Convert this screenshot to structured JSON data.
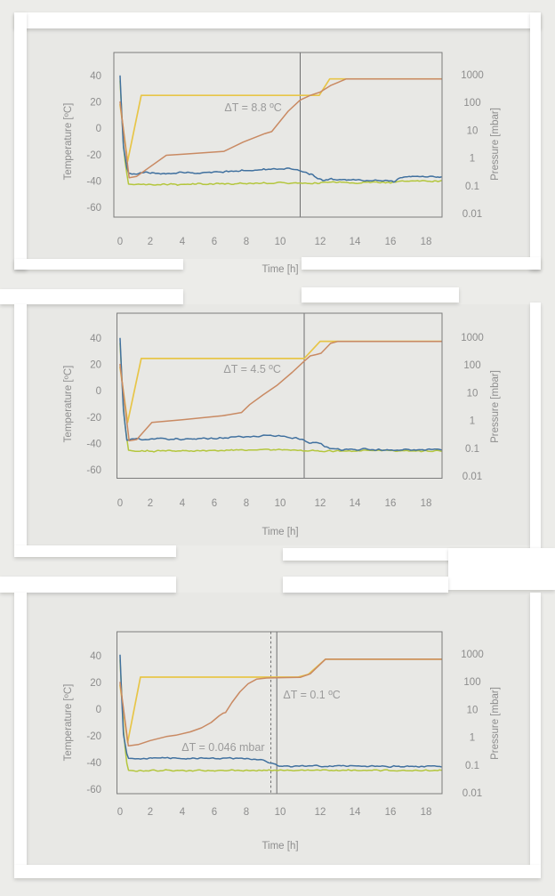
{
  "page": {
    "background_color": "#ecece9",
    "panel_color": "#e8e8e5",
    "card_color": "#ffffff"
  },
  "colors": {
    "frame": "#7c7c7c",
    "marker_line": "#6e6e6e",
    "tick_text": "#8d8d8d",
    "annotation_text": "#9b9b9b",
    "series_yellow": "#e7c548",
    "series_orange": "#c98a63",
    "series_blue": "#41719f",
    "series_green": "#b4c63d"
  },
  "chart_data": [
    {
      "type": "line",
      "xlabel": "Time [h]",
      "ylabel_left": "Temperature [ºC]",
      "ylabel_right": "Pressure [mbar]",
      "x_ticks": [
        0,
        2,
        4,
        6,
        8,
        10,
        12,
        14,
        16,
        18
      ],
      "y_ticks_left": [
        40,
        20,
        0,
        -20,
        -40,
        -60
      ],
      "y_ticks_right": [
        "1000",
        "100",
        "10",
        "1",
        "0.1",
        "0.01"
      ],
      "x_range_h": [
        0,
        18.9
      ],
      "y_range_left_c": [
        -70,
        57
      ],
      "y_range_right_mbar": [
        0.01,
        1000
      ],
      "grid": false,
      "legend": "none",
      "marker_lines": [
        {
          "t": 11.0,
          "style": "solid"
        }
      ],
      "annotations": [
        {
          "text": "ΔT = 8.8 ºC",
          "t": 8.4,
          "temp": 15.7,
          "anchor": "middle"
        }
      ],
      "series": [
        {
          "id": "green",
          "axis": "pressure",
          "color": "series_green",
          "noise": 1.1,
          "points": [
            [
              0,
              600
            ],
            [
              0.25,
              1.5
            ],
            [
              0.55,
              0.115
            ],
            [
              1,
              0.108
            ],
            [
              2,
              0.11
            ],
            [
              4,
              0.112
            ],
            [
              6,
              0.118
            ],
            [
              8,
              0.122
            ],
            [
              10,
              0.128
            ],
            [
              11,
              0.122
            ],
            [
              12,
              0.13
            ],
            [
              13,
              0.135
            ],
            [
              14,
              0.13
            ],
            [
              15,
              0.135
            ],
            [
              16,
              0.13
            ],
            [
              16.6,
              0.15
            ],
            [
              18.9,
              0.148
            ]
          ]
        },
        {
          "id": "yellow",
          "axis": "temp",
          "color": "series_yellow",
          "noise": 0,
          "points": [
            [
              0,
              18
            ],
            [
              0.5,
              -25
            ],
            [
              1.4,
              25
            ],
            [
              11.95,
              25
            ],
            [
              12.55,
              37.5
            ],
            [
              18.9,
              37.5
            ]
          ]
        },
        {
          "id": "blue",
          "axis": "pressure",
          "color": "series_blue",
          "noise": 1.2,
          "points": [
            [
              0,
              900
            ],
            [
              0.2,
              3
            ],
            [
              0.5,
              0.3
            ],
            [
              0.8,
              0.26
            ],
            [
              1.2,
              0.29
            ],
            [
              2,
              0.29
            ],
            [
              3,
              0.28
            ],
            [
              4,
              0.3
            ],
            [
              5,
              0.29
            ],
            [
              6,
              0.31
            ],
            [
              7,
              0.33
            ],
            [
              8,
              0.35
            ],
            [
              9,
              0.38
            ],
            [
              9.8,
              0.4
            ],
            [
              10.4,
              0.42
            ],
            [
              10.8,
              0.38
            ],
            [
              11.2,
              0.31
            ],
            [
              11.6,
              0.26
            ],
            [
              11.9,
              0.19
            ],
            [
              12.2,
              0.15
            ],
            [
              12.6,
              0.18
            ],
            [
              13.2,
              0.16
            ],
            [
              14,
              0.17
            ],
            [
              14.8,
              0.15
            ],
            [
              15.6,
              0.16
            ],
            [
              16.2,
              0.14
            ],
            [
              16.5,
              0.2
            ],
            [
              17.2,
              0.22
            ],
            [
              18.9,
              0.21
            ]
          ]
        },
        {
          "id": "orange",
          "axis": "temp",
          "color": "series_orange",
          "noise": 0,
          "points": [
            [
              0,
              20
            ],
            [
              0.6,
              -37.5
            ],
            [
              1.1,
              -36.5
            ],
            [
              3,
              -20.5
            ],
            [
              4.2,
              -19.5
            ],
            [
              6.6,
              -17.5
            ],
            [
              7.8,
              -10.5
            ],
            [
              9.1,
              -4
            ],
            [
              9.5,
              -2.5
            ],
            [
              10.4,
              13
            ],
            [
              11,
              21.5
            ],
            [
              11.5,
              25
            ],
            [
              12,
              27.5
            ],
            [
              12.6,
              32.5
            ],
            [
              13.5,
              37.5
            ],
            [
              18.9,
              37.5
            ]
          ]
        }
      ]
    },
    {
      "type": "line",
      "xlabel": "Time [h]",
      "ylabel_left": "Temperature [ºC]",
      "ylabel_right": "Pressure [mbar]",
      "x_ticks": [
        0,
        2,
        4,
        6,
        8,
        10,
        12,
        14,
        16,
        18
      ],
      "y_ticks_left": [
        40,
        20,
        0,
        -20,
        -40,
        -60
      ],
      "y_ticks_right": [
        "1000",
        "100",
        "10",
        "1",
        "0.1",
        "0.01"
      ],
      "x_range_h": [
        0,
        18.9
      ],
      "y_range_left_c": [
        -70,
        57
      ],
      "y_range_right_mbar": [
        0.01,
        1000
      ],
      "grid": false,
      "legend": "none",
      "marker_lines": [
        {
          "t": 11.2,
          "style": "solid"
        }
      ],
      "annotations": [
        {
          "text": "ΔT = 4.5 ºC",
          "t": 8.35,
          "temp": 16.2,
          "anchor": "middle"
        }
      ],
      "series": [
        {
          "id": "green",
          "axis": "pressure",
          "color": "series_green",
          "noise": 1.1,
          "points": [
            [
              0,
              600
            ],
            [
              0.25,
              1.5
            ],
            [
              0.55,
              0.085
            ],
            [
              1,
              0.078
            ],
            [
              3,
              0.08
            ],
            [
              5,
              0.082
            ],
            [
              7,
              0.085
            ],
            [
              9,
              0.088
            ],
            [
              10.5,
              0.085
            ],
            [
              11.5,
              0.082
            ],
            [
              12.5,
              0.078
            ],
            [
              14,
              0.08
            ],
            [
              15.8,
              0.085
            ],
            [
              16.2,
              0.082
            ],
            [
              18.9,
              0.08
            ]
          ]
        },
        {
          "id": "yellow",
          "axis": "temp",
          "color": "series_yellow",
          "noise": 0,
          "points": [
            [
              0,
              18
            ],
            [
              0.5,
              -24
            ],
            [
              1.4,
              24.5
            ],
            [
              11.2,
              24.5
            ],
            [
              12.0,
              37.6
            ],
            [
              18.9,
              37.6
            ]
          ]
        },
        {
          "id": "blue",
          "axis": "pressure",
          "color": "series_blue",
          "noise": 1.2,
          "points": [
            [
              0,
              900
            ],
            [
              0.2,
              3
            ],
            [
              0.45,
              0.19
            ],
            [
              0.8,
              0.22
            ],
            [
              1.5,
              0.21
            ],
            [
              2.5,
              0.22
            ],
            [
              3.5,
              0.21
            ],
            [
              4.5,
              0.22
            ],
            [
              5.5,
              0.22
            ],
            [
              6.5,
              0.23
            ],
            [
              7.5,
              0.25
            ],
            [
              8.5,
              0.27
            ],
            [
              9.5,
              0.29
            ],
            [
              10.2,
              0.28
            ],
            [
              10.8,
              0.23
            ],
            [
              11.1,
              0.2
            ],
            [
              11.5,
              0.155
            ],
            [
              11.9,
              0.155
            ],
            [
              12.2,
              0.125
            ],
            [
              12.7,
              0.092
            ],
            [
              13.5,
              0.088
            ],
            [
              14.5,
              0.092
            ],
            [
              15.5,
              0.088
            ],
            [
              16.5,
              0.09
            ],
            [
              18.9,
              0.086
            ]
          ]
        },
        {
          "id": "orange",
          "axis": "temp",
          "color": "series_orange",
          "noise": 0,
          "points": [
            [
              0,
              20
            ],
            [
              0.6,
              -38
            ],
            [
              1.1,
              -37
            ],
            [
              2.1,
              -24
            ],
            [
              4,
              -22
            ],
            [
              6.5,
              -19
            ],
            [
              7.7,
              -16.5
            ],
            [
              8.2,
              -10.5
            ],
            [
              9,
              -3
            ],
            [
              9.8,
              4
            ],
            [
              10.6,
              14
            ],
            [
              11.2,
              22.5
            ],
            [
              11.5,
              26.5
            ],
            [
              11.8,
              27.5
            ],
            [
              12.05,
              28.5
            ],
            [
              12.6,
              36
            ],
            [
              13.0,
              37.4
            ],
            [
              18.9,
              37.4
            ]
          ]
        }
      ]
    },
    {
      "type": "line",
      "xlabel": "Time [h]",
      "ylabel_left": "Temperature [ºC]",
      "ylabel_right": "Pressure [mbar]",
      "x_ticks": [
        0,
        2,
        4,
        6,
        8,
        10,
        12,
        14,
        16,
        18
      ],
      "y_ticks_left": [
        40,
        20,
        0,
        -20,
        -40,
        -60
      ],
      "y_ticks_right": [
        "1000",
        "100",
        "10",
        "1",
        "0.1",
        "0.01"
      ],
      "x_range_h": [
        0,
        18.9
      ],
      "y_range_left_c": [
        -62,
        57
      ],
      "y_range_right_mbar": [
        0.01,
        1000
      ],
      "grid": false,
      "legend": "none",
      "marker_lines": [
        {
          "t": 9.45,
          "style": "dashed"
        },
        {
          "t": 9.8,
          "style": "solid"
        }
      ],
      "annotations": [
        {
          "text": "ΔT = 0.1 ºC",
          "t": 10.15,
          "temp": 10.7,
          "anchor": "start"
        },
        {
          "text": "ΔT = 0.046 mbar",
          "t": 9.08,
          "temp": -28.7,
          "anchor": "end"
        }
      ],
      "series": [
        {
          "id": "green",
          "axis": "pressure",
          "color": "series_green",
          "noise": 0.9,
          "points": [
            [
              0,
              600
            ],
            [
              0.25,
              1
            ],
            [
              0.5,
              0.065
            ],
            [
              1,
              0.062
            ],
            [
              2,
              0.063
            ],
            [
              3,
              0.065
            ],
            [
              4,
              0.062
            ],
            [
              5,
              0.064
            ],
            [
              6,
              0.062
            ],
            [
              7,
              0.064
            ],
            [
              8,
              0.063
            ],
            [
              9,
              0.064
            ],
            [
              10,
              0.065
            ],
            [
              11,
              0.064
            ],
            [
              12,
              0.065
            ],
            [
              13,
              0.064
            ],
            [
              14,
              0.066
            ],
            [
              15,
              0.064
            ],
            [
              16,
              0.065
            ],
            [
              17,
              0.064
            ],
            [
              18.9,
              0.065
            ]
          ]
        },
        {
          "id": "yellow",
          "axis": "temp",
          "color": "series_yellow",
          "noise": 0,
          "points": [
            [
              0,
              18
            ],
            [
              0.5,
              -25
            ],
            [
              1.35,
              24
            ],
            [
              10.9,
              24
            ],
            [
              11.4,
              26
            ],
            [
              12.3,
              37.4
            ],
            [
              18.9,
              37.4
            ]
          ]
        },
        {
          "id": "blue",
          "axis": "pressure",
          "color": "series_blue",
          "noise": 1.0,
          "points": [
            [
              0,
              900
            ],
            [
              0.2,
              1.5
            ],
            [
              0.5,
              0.175
            ],
            [
              1,
              0.17
            ],
            [
              2,
              0.175
            ],
            [
              3,
              0.18
            ],
            [
              4,
              0.17
            ],
            [
              5,
              0.175
            ],
            [
              6,
              0.17
            ],
            [
              7,
              0.175
            ],
            [
              8,
              0.17
            ],
            [
              8.6,
              0.165
            ],
            [
              9.1,
              0.14
            ],
            [
              9.6,
              0.11
            ],
            [
              9.9,
              0.095
            ],
            [
              10.5,
              0.09
            ],
            [
              11.5,
              0.095
            ],
            [
              12.5,
              0.09
            ],
            [
              13.5,
              0.093
            ],
            [
              14.5,
              0.09
            ],
            [
              15.5,
              0.088
            ],
            [
              16.5,
              0.09
            ],
            [
              17.5,
              0.088
            ],
            [
              18.9,
              0.09
            ]
          ]
        },
        {
          "id": "orange",
          "axis": "temp",
          "color": "series_orange",
          "noise": 0,
          "points": [
            [
              0,
              20
            ],
            [
              0.55,
              -27.5
            ],
            [
              1.2,
              -26.5
            ],
            [
              2,
              -23.5
            ],
            [
              3,
              -20.5
            ],
            [
              3.6,
              -19.5
            ],
            [
              4.5,
              -17
            ],
            [
              5.2,
              -14
            ],
            [
              5.8,
              -10
            ],
            [
              6.3,
              -5
            ],
            [
              6.55,
              -3
            ],
            [
              6.7,
              -2.5
            ],
            [
              7.1,
              5
            ],
            [
              7.6,
              13
            ],
            [
              8.1,
              19
            ],
            [
              8.6,
              22.5
            ],
            [
              9.2,
              23.3
            ],
            [
              10,
              23.6
            ],
            [
              11,
              23.8
            ],
            [
              11.5,
              26.5
            ],
            [
              12.3,
              37.4
            ],
            [
              18.9,
              37.4
            ]
          ]
        }
      ]
    }
  ]
}
